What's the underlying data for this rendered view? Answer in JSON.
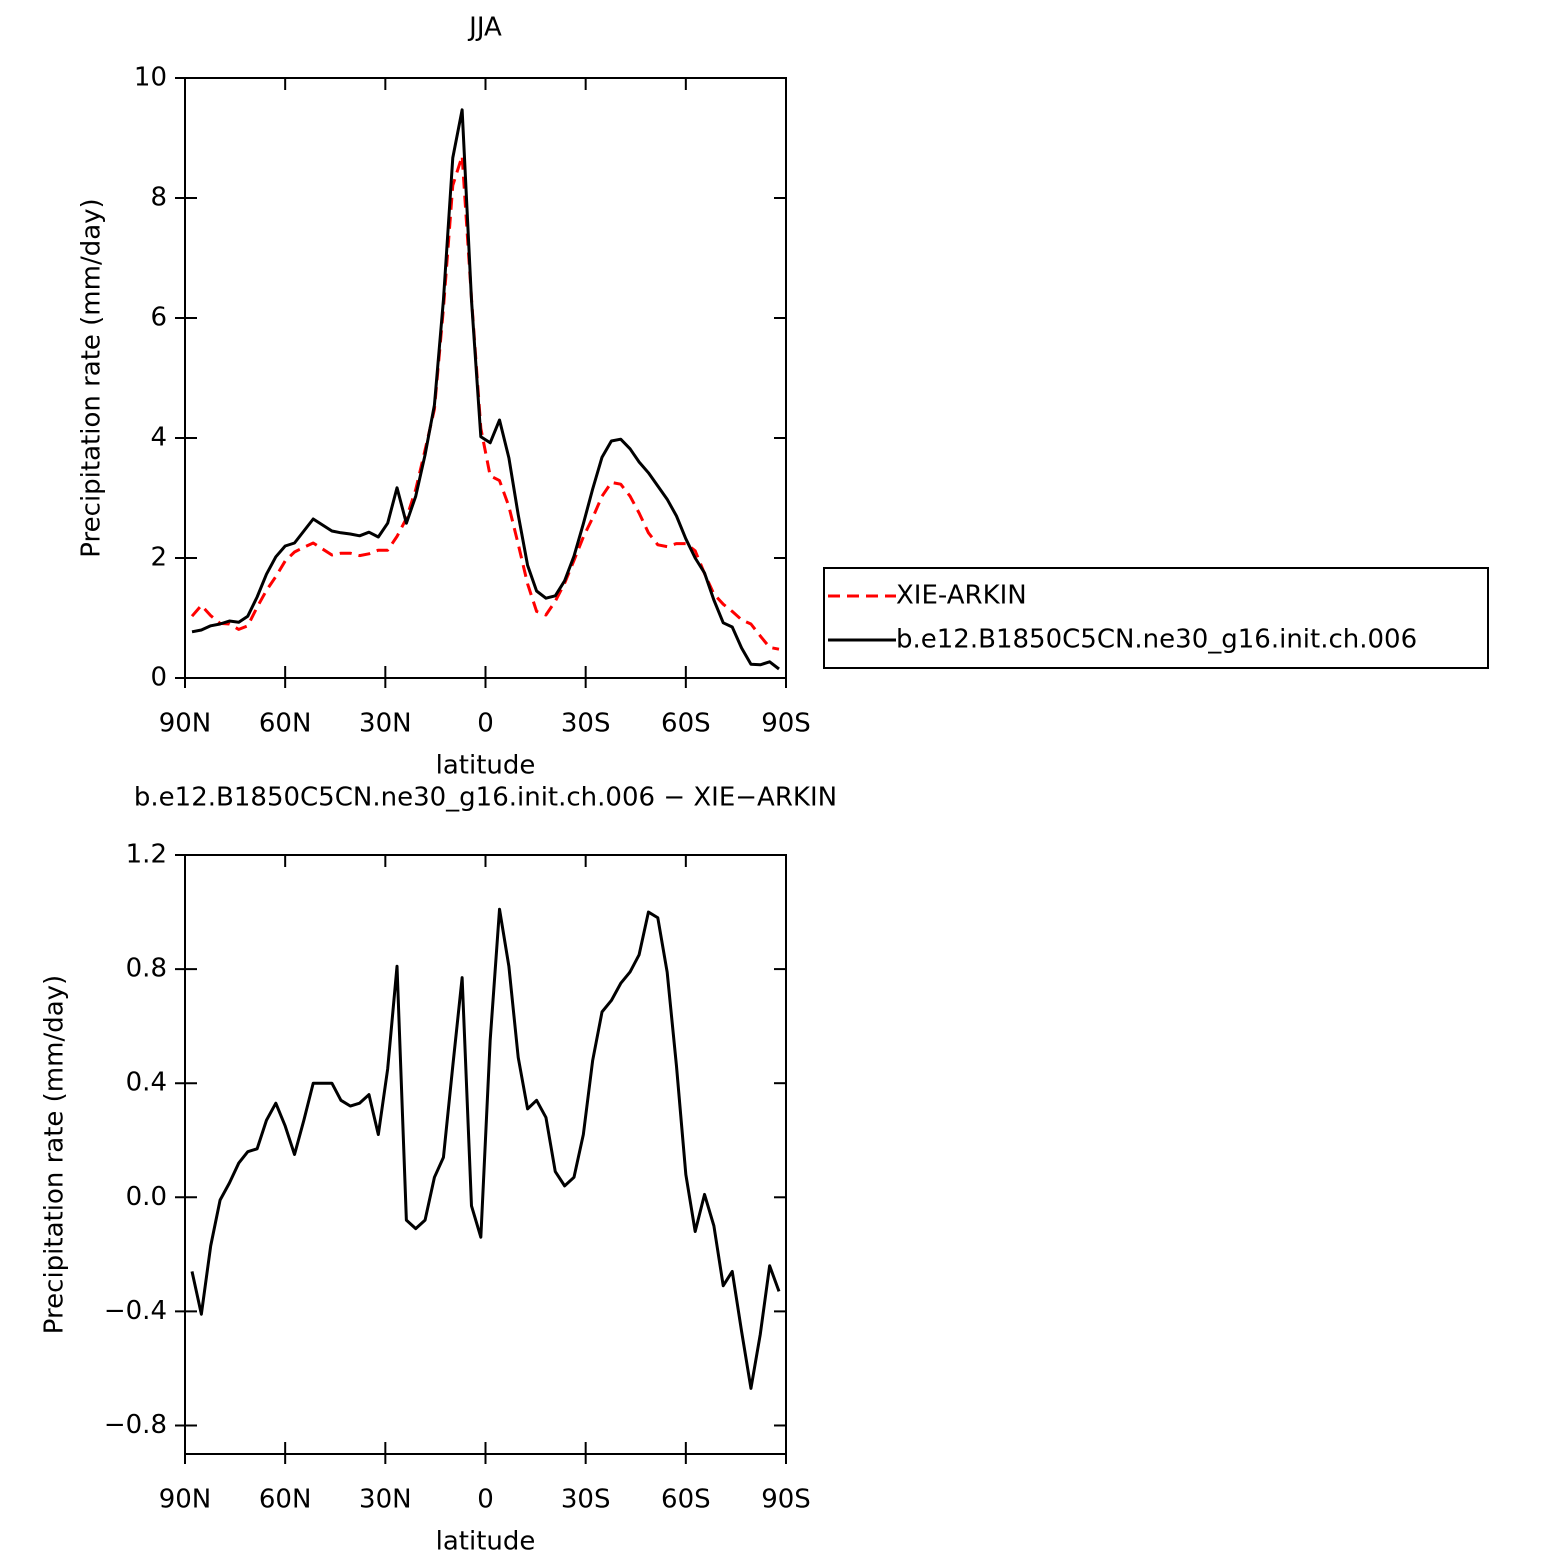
{
  "chart_data": [
    {
      "type": "line",
      "title": "JJA",
      "xlabel": "latitude",
      "ylabel": "Precipitation rate (mm/day)",
      "x": [
        87.9,
        85.1,
        82.3,
        79.5,
        76.7,
        73.9,
        71.2,
        68.4,
        65.6,
        62.8,
        60.0,
        57.2,
        54.4,
        51.6,
        48.8,
        46.0,
        43.3,
        40.5,
        37.7,
        34.9,
        32.1,
        29.3,
        26.5,
        23.7,
        20.9,
        18.1,
        15.3,
        12.6,
        9.8,
        7.0,
        4.2,
        1.4,
        -1.4,
        -4.2,
        -7.0,
        -9.8,
        -12.6,
        -15.3,
        -18.1,
        -20.9,
        -23.7,
        -26.5,
        -29.3,
        -32.1,
        -34.9,
        -37.7,
        -40.5,
        -43.3,
        -46.0,
        -48.8,
        -51.6,
        -54.4,
        -57.2,
        -60.0,
        -62.8,
        -65.6,
        -68.4,
        -71.2,
        -73.9,
        -76.7,
        -79.5,
        -82.3,
        -85.1,
        -87.9
      ],
      "xlim": [
        90,
        -90
      ],
      "xticks": [
        {
          "value": 90,
          "label": "90N"
        },
        {
          "value": 60,
          "label": "60N"
        },
        {
          "value": 30,
          "label": "30N"
        },
        0,
        {
          "value": -30,
          "label": "30S"
        },
        {
          "value": -60,
          "label": "60S"
        },
        {
          "value": -90,
          "label": "90S"
        }
      ],
      "ylim": [
        0,
        10
      ],
      "yticks": [
        0,
        2,
        4,
        6,
        8,
        10
      ],
      "legend": "right",
      "series": [
        {
          "name": "XIE-ARKIN",
          "color": "#ff0000",
          "line_style": "dashed",
          "values": [
            1.03,
            1.21,
            1.04,
            0.91,
            0.9,
            0.81,
            0.87,
            1.18,
            1.46,
            1.69,
            1.95,
            2.1,
            2.18,
            2.25,
            2.15,
            2.05,
            2.08,
            2.08,
            2.04,
            2.07,
            2.13,
            2.13,
            2.36,
            2.66,
            3.14,
            3.8,
            4.48,
            6.16,
            8.21,
            8.7,
            6.33,
            4.16,
            3.37,
            3.29,
            2.86,
            2.23,
            1.57,
            1.11,
            1.05,
            1.28,
            1.58,
            1.96,
            2.35,
            2.67,
            3.03,
            3.26,
            3.23,
            3.03,
            2.75,
            2.42,
            2.22,
            2.19,
            2.24,
            2.24,
            2.12,
            1.74,
            1.4,
            1.23,
            1.11,
            0.97,
            0.9,
            0.7,
            0.51,
            0.48
          ]
        },
        {
          "name": "b.e12.B1850C5CN.ne30_g16.init.ch.006",
          "color": "#000000",
          "line_style": "solid",
          "values": [
            0.77,
            0.8,
            0.87,
            0.9,
            0.95,
            0.93,
            1.03,
            1.35,
            1.73,
            2.02,
            2.2,
            2.25,
            2.45,
            2.65,
            2.55,
            2.45,
            2.42,
            2.4,
            2.37,
            2.43,
            2.35,
            2.58,
            3.17,
            2.58,
            3.03,
            3.72,
            4.55,
            6.3,
            8.67,
            9.47,
            6.3,
            4.02,
            3.92,
            4.3,
            3.67,
            2.72,
            1.88,
            1.45,
            1.33,
            1.37,
            1.62,
            2.03,
            2.57,
            3.15,
            3.68,
            3.95,
            3.98,
            3.82,
            3.6,
            3.42,
            3.2,
            2.98,
            2.7,
            2.32,
            2.0,
            1.75,
            1.3,
            0.92,
            0.85,
            0.5,
            0.23,
            0.22,
            0.27,
            0.15
          ]
        }
      ]
    },
    {
      "type": "line",
      "title": "b.e12.B1850C5CN.ne30_g16.init.ch.006 − XIE−ARKIN",
      "xlabel": "latitude",
      "ylabel": "Precipitation rate (mm/day)",
      "x": [
        87.9,
        85.1,
        82.3,
        79.5,
        76.7,
        73.9,
        71.2,
        68.4,
        65.6,
        62.8,
        60.0,
        57.2,
        54.4,
        51.6,
        48.8,
        46.0,
        43.3,
        40.5,
        37.7,
        34.9,
        32.1,
        29.3,
        26.5,
        23.7,
        20.9,
        18.1,
        15.3,
        12.6,
        9.8,
        7.0,
        4.2,
        1.4,
        -1.4,
        -4.2,
        -7.0,
        -9.8,
        -12.6,
        -15.3,
        -18.1,
        -20.9,
        -23.7,
        -26.5,
        -29.3,
        -32.1,
        -34.9,
        -37.7,
        -40.5,
        -43.3,
        -46.0,
        -48.8,
        -51.6,
        -54.4,
        -57.2,
        -60.0,
        -62.8,
        -65.6,
        -68.4,
        -71.2,
        -73.9,
        -76.7,
        -79.5,
        -82.3,
        -85.1,
        -87.9
      ],
      "xlim": [
        90,
        -90
      ],
      "xticks": [
        {
          "value": 90,
          "label": "90N"
        },
        {
          "value": 60,
          "label": "60N"
        },
        {
          "value": 30,
          "label": "30N"
        },
        0,
        {
          "value": -30,
          "label": "30S"
        },
        {
          "value": -60,
          "label": "60S"
        },
        {
          "value": -90,
          "label": "90S"
        }
      ],
      "ylim": [
        -0.9,
        1.2
      ],
      "yticks": [
        {
          "value": -0.8,
          "label": "−0.8"
        },
        {
          "value": -0.4,
          "label": "−0.4"
        },
        {
          "value": 0,
          "label": "0.0"
        },
        0.4,
        0.8,
        1.2
      ],
      "series": [
        {
          "color": "#000000",
          "line_style": "solid",
          "values": [
            -0.26,
            -0.41,
            -0.17,
            -0.01,
            0.05,
            0.12,
            0.16,
            0.17,
            0.27,
            0.33,
            0.25,
            0.15,
            0.27,
            0.4,
            0.4,
            0.4,
            0.34,
            0.32,
            0.33,
            0.36,
            0.22,
            0.45,
            0.81,
            -0.08,
            -0.11,
            -0.08,
            0.07,
            0.14,
            0.46,
            0.77,
            -0.03,
            -0.14,
            0.55,
            1.01,
            0.81,
            0.49,
            0.31,
            0.34,
            0.28,
            0.09,
            0.04,
            0.07,
            0.22,
            0.48,
            0.65,
            0.69,
            0.75,
            0.79,
            0.85,
            1.0,
            0.98,
            0.79,
            0.46,
            0.08,
            -0.12,
            0.01,
            -0.1,
            -0.31,
            -0.26,
            -0.47,
            -0.67,
            -0.48,
            -0.24,
            -0.33
          ]
        }
      ]
    }
  ]
}
